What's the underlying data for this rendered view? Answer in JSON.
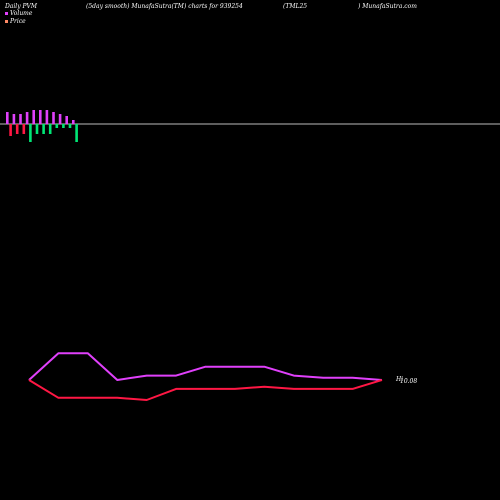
{
  "header": {
    "left": "Daily PVM",
    "center_left": "(5day smooth) MunafaSutra(TM) charts for 939254",
    "center_right": "(TML25",
    "right": ") MunafaSutra.com"
  },
  "legend": [
    {
      "label": "Volume",
      "color": "#e040fb"
    },
    {
      "label": "Price",
      "color": "#ff8a65"
    }
  ],
  "chart_data": [
    {
      "type": "bar",
      "title": "Volume",
      "baseline_color": "#bdbdbd",
      "series": [
        {
          "values": [
            12,
            -12,
            10,
            -10,
            10,
            -10,
            12,
            -18,
            14,
            -10,
            14,
            -10,
            14,
            -10,
            12,
            -4,
            10,
            -4,
            8,
            -4,
            4,
            -18
          ],
          "colors": [
            "#e040fb",
            "#ff1744",
            "#e040fb",
            "#ff1744",
            "#e040fb",
            "#ff1744",
            "#e040fb",
            "#00e676",
            "#e040fb",
            "#00e676",
            "#e040fb",
            "#00e676",
            "#e040fb",
            "#00e676",
            "#e040fb",
            "#00e676",
            "#e040fb",
            "#00e676",
            "#e040fb",
            "#00e676",
            "#e040fb",
            "#00e676"
          ]
        }
      ]
    },
    {
      "type": "line",
      "title": "Price",
      "x": [
        1,
        2,
        3,
        4,
        5,
        6,
        7,
        8,
        9,
        10,
        11,
        12,
        13
      ],
      "series": [
        {
          "color": "#e040fb",
          "values": [
            10.08,
            10.2,
            10.2,
            10.08,
            10.1,
            10.1,
            10.14,
            10.14,
            10.14,
            10.1,
            10.09,
            10.09,
            10.08
          ]
        },
        {
          "color": "#ff1744",
          "values": [
            10.08,
            10.0,
            10.0,
            10.0,
            9.99,
            10.04,
            10.04,
            10.04,
            10.05,
            10.04,
            10.04,
            10.04,
            10.08
          ]
        }
      ],
      "end_labels": [
        "Hi",
        "10.08"
      ]
    }
  ]
}
